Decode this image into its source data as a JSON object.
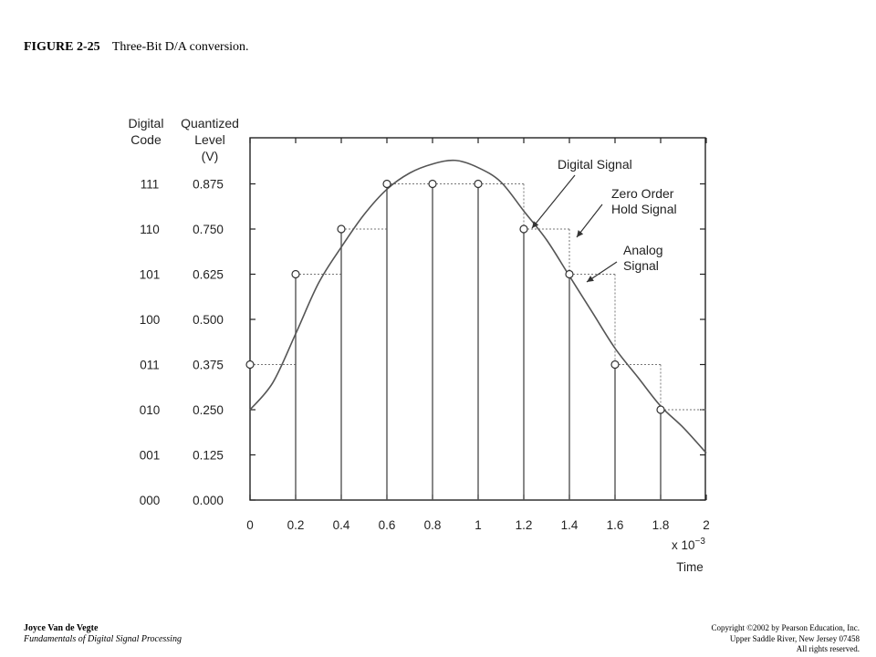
{
  "figure": {
    "number": "FIGURE 2-25",
    "caption": "Three-Bit D/A conversion."
  },
  "footer": {
    "author": "Joyce Van de Vegte",
    "book": "Fundamentals of Digital Signal Processing",
    "copyright_lines": [
      "Copyright ©2002 by Pearson Education, Inc.",
      "Upper Saddle River, New Jersey 07458",
      "All rights reserved."
    ]
  },
  "chart_data": {
    "type": "line",
    "column_headers": {
      "code": [
        "Digital",
        "Code"
      ],
      "level": [
        "Quantized",
        "Level",
        "(V)"
      ]
    },
    "y_levels": [
      {
        "code": "000",
        "level": "0.000",
        "value": 0.0
      },
      {
        "code": "001",
        "level": "0.125",
        "value": 0.125
      },
      {
        "code": "010",
        "level": "0.250",
        "value": 0.25
      },
      {
        "code": "011",
        "level": "0.375",
        "value": 0.375
      },
      {
        "code": "100",
        "level": "0.500",
        "value": 0.5
      },
      {
        "code": "101",
        "level": "0.625",
        "value": 0.625
      },
      {
        "code": "110",
        "level": "0.750",
        "value": 0.75
      },
      {
        "code": "111",
        "level": "0.875",
        "value": 0.875
      }
    ],
    "x_ticks": [
      "0",
      "0.2",
      "0.4",
      "0.6",
      "0.8",
      "1",
      "1.2",
      "1.4",
      "1.6",
      "1.8",
      "2"
    ],
    "x_tick_values": [
      0,
      0.2,
      0.4,
      0.6,
      0.8,
      1.0,
      1.2,
      1.4,
      1.6,
      1.8,
      2.0
    ],
    "xlim": [
      0,
      2
    ],
    "ylim": [
      0,
      1.0
    ],
    "x_multiplier_label": "x 10",
    "x_multiplier_exp": "−3",
    "xlabel": "Time",
    "series": [
      {
        "name": "Digital Signal",
        "x": [
          0,
          0.2,
          0.4,
          0.6,
          0.8,
          1.0,
          1.2,
          1.4,
          1.6,
          1.8
        ],
        "y": [
          0.375,
          0.625,
          0.75,
          0.875,
          0.875,
          0.875,
          0.75,
          0.625,
          0.375,
          0.25
        ]
      },
      {
        "name": "Zero Order Hold Signal",
        "x": [
          0,
          0.2,
          0.4,
          0.6,
          0.8,
          1.0,
          1.2,
          1.4,
          1.6,
          1.8
        ],
        "y": [
          0.375,
          0.625,
          0.75,
          0.875,
          0.875,
          0.875,
          0.75,
          0.625,
          0.375,
          0.25
        ]
      },
      {
        "name": "Analog Signal",
        "x": [
          0,
          0.1,
          0.2,
          0.3,
          0.4,
          0.5,
          0.6,
          0.7,
          0.8,
          0.9,
          1.0,
          1.1,
          1.2,
          1.3,
          1.4,
          1.5,
          1.6,
          1.7,
          1.8,
          1.9,
          2.0
        ],
        "y": [
          0.25,
          0.325,
          0.46,
          0.6,
          0.7,
          0.79,
          0.86,
          0.905,
          0.93,
          0.94,
          0.92,
          0.88,
          0.8,
          0.72,
          0.62,
          0.52,
          0.42,
          0.34,
          0.26,
          0.2,
          0.13
        ]
      }
    ],
    "annotations": [
      {
        "lines": [
          "Digital Signal"
        ],
        "x": 1.2,
        "y": 0.75
      },
      {
        "lines": [
          "Zero Order",
          "Hold Signal"
        ],
        "x": 1.42,
        "y": 0.75
      },
      {
        "lines": [
          "Analog",
          "Signal"
        ],
        "x": 1.47,
        "y": 0.625
      }
    ],
    "grid": false,
    "colors": {
      "line": "#555555",
      "frame": "#222222",
      "text": "#222222"
    }
  }
}
